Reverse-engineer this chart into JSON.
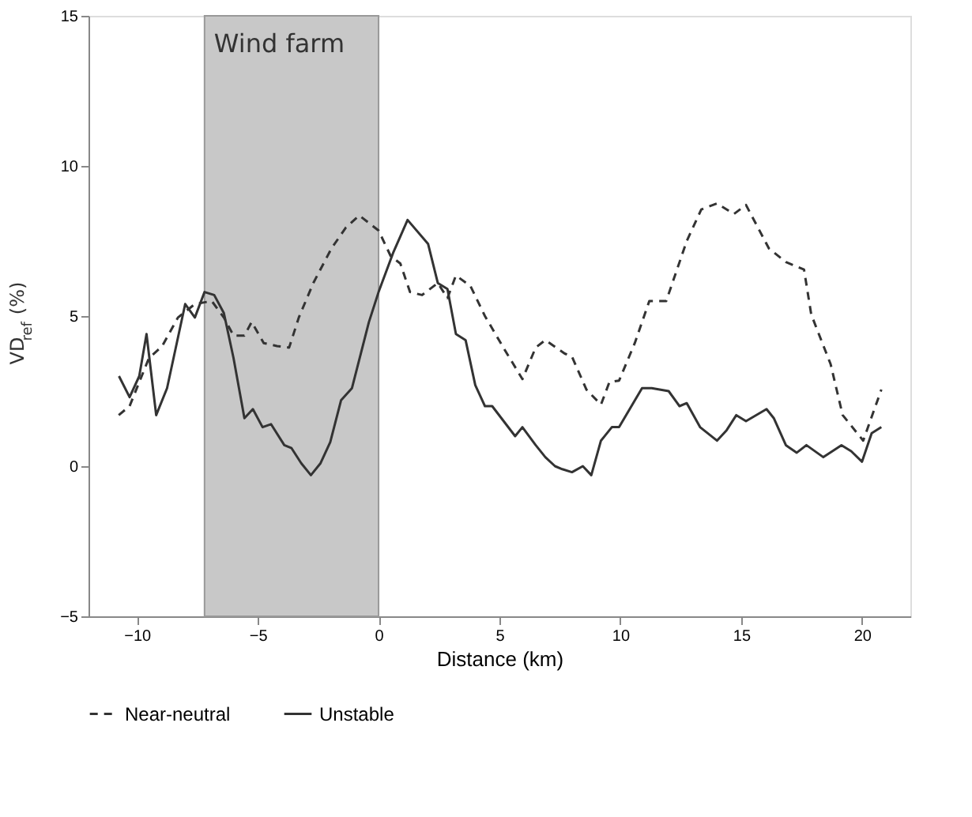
{
  "chart_data": {
    "type": "line",
    "xlabel": "Distance (km)",
    "ylabel": "VD$_{ref}$ (%)",
    "xlim": [
      -12,
      22
    ],
    "xticks": [
      -10,
      -5,
      0,
      5,
      10,
      15,
      20
    ],
    "ylim": [
      -5,
      15
    ],
    "yticks": [
      -5,
      0,
      5,
      10,
      15
    ],
    "grid": false,
    "legend": "bottom",
    "bands": [
      {
        "axis": "x",
        "from": -7.2,
        "to": 0,
        "label": "Wind farm",
        "color": "#c8c8c8"
      }
    ],
    "series": [
      {
        "name": "Near-neutral",
        "color": "#333333",
        "line_style": "dashed",
        "x": [
          -10.75,
          -10.3,
          -9.5,
          -8.95,
          -8.3,
          -7.6,
          -6.9,
          -6.4,
          -6.0,
          -5.55,
          -5.25,
          -4.75,
          -4.2,
          -3.7,
          -3.3,
          -2.7,
          -1.95,
          -1.35,
          -0.8,
          0,
          0.5,
          0.9,
          1.3,
          1.8,
          2.45,
          2.85,
          3.2,
          3.8,
          4.4,
          5.2,
          5.95,
          6.5,
          6.9,
          7.7,
          8.0,
          8.6,
          9.2,
          9.55,
          9.95,
          10.6,
          11.2,
          11.9,
          12.75,
          13.35,
          14.0,
          14.7,
          15.2,
          16.15,
          16.85,
          17.6,
          17.9,
          18.7,
          19.2,
          20.05,
          20.8
        ],
        "values": [
          1.7,
          2.0,
          3.6,
          4.0,
          4.95,
          5.4,
          5.5,
          4.95,
          4.35,
          4.35,
          4.8,
          4.1,
          4.0,
          3.95,
          4.95,
          6.1,
          7.25,
          7.95,
          8.35,
          7.85,
          7.0,
          6.75,
          5.8,
          5.7,
          6.1,
          5.6,
          6.35,
          6.0,
          5.0,
          3.9,
          2.9,
          3.95,
          4.2,
          3.75,
          3.65,
          2.55,
          2.05,
          2.8,
          2.85,
          4.1,
          5.5,
          5.5,
          7.5,
          8.55,
          8.75,
          8.4,
          8.7,
          7.25,
          6.8,
          6.55,
          5.05,
          3.4,
          1.7,
          0.85,
          2.55
        ]
      },
      {
        "name": "Unstable",
        "color": "#333333",
        "line_style": "solid",
        "x": [
          -10.74,
          -10.3,
          -9.9,
          -9.6,
          -9.2,
          -8.75,
          -8.0,
          -7.6,
          -7.2,
          -6.8,
          -6.4,
          -6.0,
          -5.55,
          -5.2,
          -4.8,
          -4.45,
          -3.9,
          -3.6,
          -3.2,
          -2.8,
          -2.4,
          -2.0,
          -1.55,
          -1.1,
          -0.4,
          0,
          0.6,
          1.2,
          2.05,
          2.45,
          2.85,
          3.2,
          3.6,
          4.0,
          4.4,
          4.7,
          5.65,
          5.95,
          6.5,
          6.9,
          7.3,
          7.6,
          8.0,
          8.45,
          8.8,
          9.2,
          9.65,
          9.95,
          10.9,
          11.3,
          12.0,
          12.45,
          12.75,
          13.3,
          14.0,
          14.4,
          14.8,
          15.2,
          16.05,
          16.35,
          16.85,
          17.3,
          17.7,
          18.4,
          19.15,
          19.55,
          20.0,
          20.4,
          20.8
        ],
        "values": [
          3.0,
          2.3,
          3.0,
          4.4,
          1.7,
          2.6,
          5.4,
          4.95,
          5.8,
          5.7,
          5.1,
          3.6,
          1.6,
          1.9,
          1.3,
          1.4,
          0.7,
          0.6,
          0.1,
          -0.3,
          0.1,
          0.8,
          2.2,
          2.6,
          4.8,
          5.8,
          7.1,
          8.2,
          7.4,
          6.1,
          5.9,
          4.4,
          4.2,
          2.7,
          2.0,
          2.0,
          1.0,
          1.3,
          0.7,
          0.3,
          0.0,
          -0.1,
          -0.2,
          0.0,
          -0.3,
          0.85,
          1.3,
          1.3,
          2.6,
          2.6,
          2.5,
          2.0,
          2.1,
          1.3,
          0.85,
          1.2,
          1.7,
          1.5,
          1.9,
          1.6,
          0.7,
          0.45,
          0.7,
          0.3,
          0.7,
          0.5,
          0.15,
          1.1,
          1.3
        ]
      }
    ]
  }
}
